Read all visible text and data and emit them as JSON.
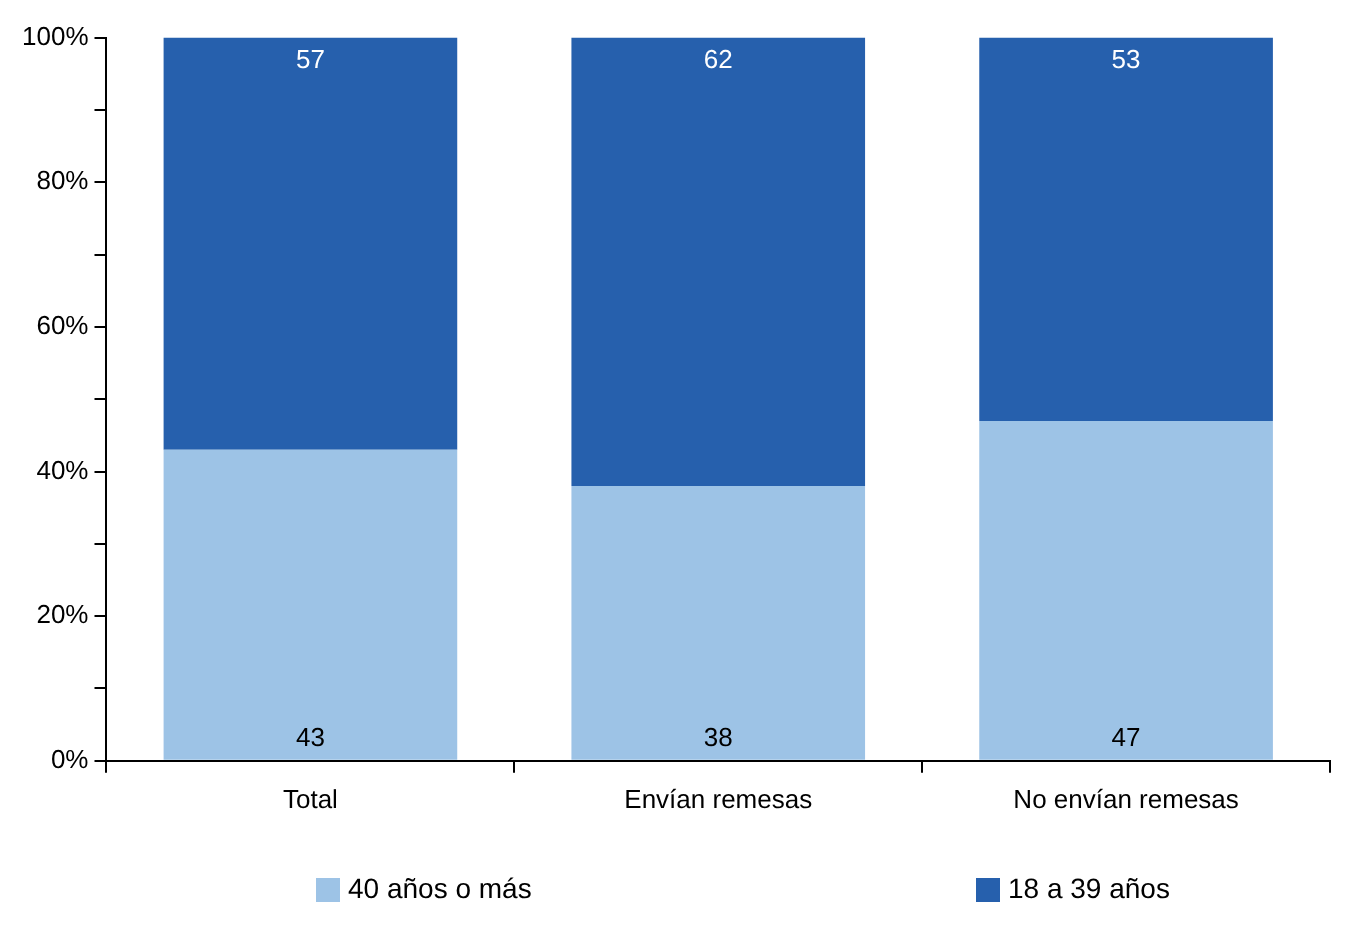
{
  "chart_data": {
    "type": "bar",
    "stacked": true,
    "categories": [
      "Total",
      "Envían remesas",
      "No envían remesas"
    ],
    "series": [
      {
        "name": "40 años o más",
        "color": "#9dc3e6",
        "values": [
          43,
          38,
          47
        ]
      },
      {
        "name": "18 a 39 años",
        "color": "#2660ad",
        "values": [
          57,
          62,
          53
        ]
      }
    ],
    "ylim": [
      0,
      100
    ],
    "yticks": [
      {
        "value": 0,
        "label": "0%"
      },
      {
        "value": 10,
        "label": null
      },
      {
        "value": 20,
        "label": "20%"
      },
      {
        "value": 30,
        "label": null
      },
      {
        "value": 40,
        "label": "40%"
      },
      {
        "value": 50,
        "label": null
      },
      {
        "value": 60,
        "label": "60%"
      },
      {
        "value": 70,
        "label": null
      },
      {
        "value": 80,
        "label": "80%"
      },
      {
        "value": 90,
        "label": null
      },
      {
        "value": 100,
        "label": "100%"
      }
    ],
    "data_labels": true,
    "grid": false,
    "legend": "bottom"
  }
}
